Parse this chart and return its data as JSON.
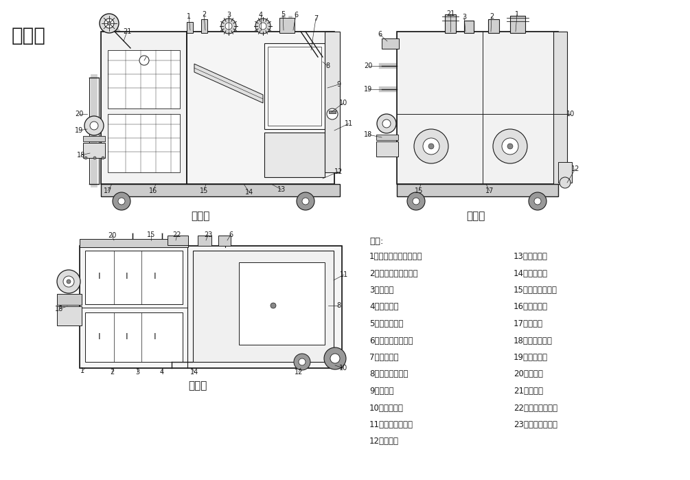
{
  "title": "三视图",
  "view_titles": [
    "主视图",
    "左视图",
    "俯视图"
  ],
  "legend_title": "说明:",
  "legend_left": [
    "1、全自动固液分离装置",
    "2、固液分离装置箱体",
    "3、进水口",
    "4、曝气系统",
    "5、曝气输送管",
    "6、虹吸系统检修口",
    "7、虹吸系统",
    "8、恒温加热单元",
    "9、集油区",
    "10、排油开关",
    "11、油水分离装置",
    "12、集油桶"
  ],
  "legend_right": [
    "13、槽钢底座",
    "14、泄水阀门",
    "15、污水提升装置",
    "16、渣桶推车",
    "17、集渣桶",
    "18、出水止回阀",
    "19、出水开关",
    "20、出水口",
    "21、排渣管",
    "22、水系线过线控",
    "23、液位控制系统"
  ],
  "bg_color": "#ffffff",
  "line_color": "#1a1a1a",
  "text_color": "#1a1a1a",
  "gray_fill": "#cccccc",
  "light_gray": "#e8e8e8",
  "mid_gray": "#b0b0b0"
}
